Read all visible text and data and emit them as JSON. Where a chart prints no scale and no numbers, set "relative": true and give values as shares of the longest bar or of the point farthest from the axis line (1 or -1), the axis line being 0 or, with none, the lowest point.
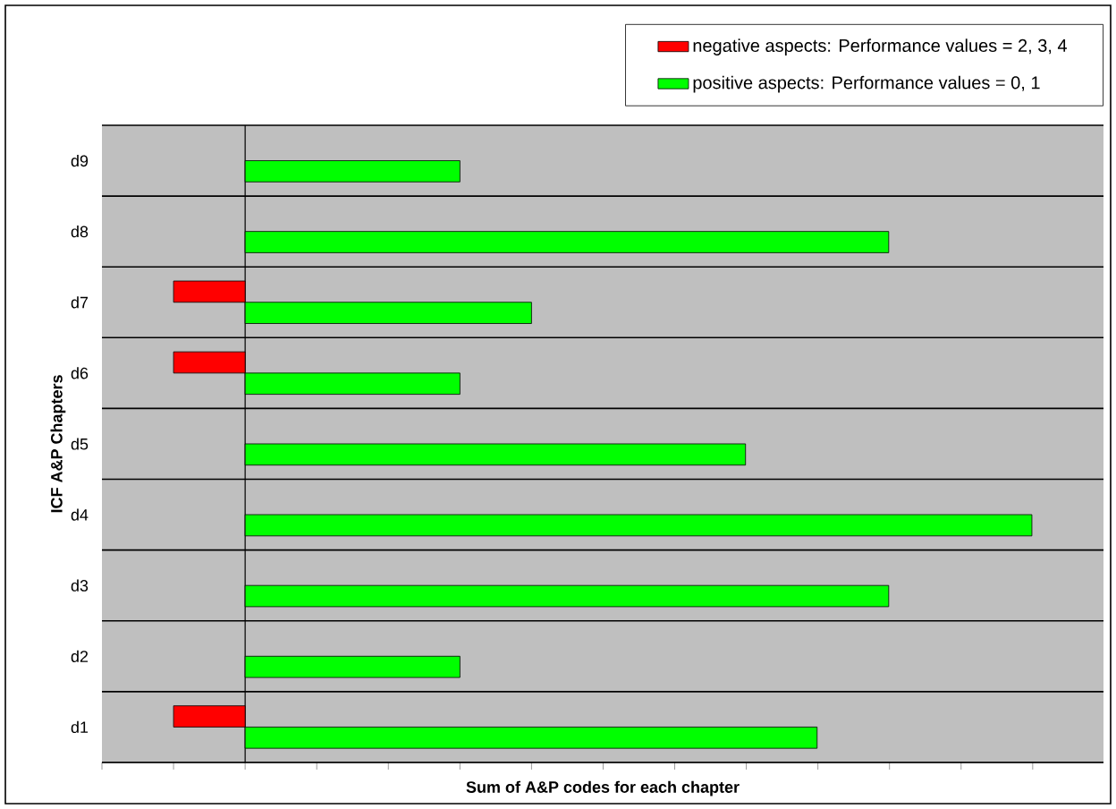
{
  "chart_data": {
    "type": "bar",
    "orientation": "horizontal",
    "relative": true,
    "xlabel": "Sum of A&P codes for each chapter",
    "ylabel": "ICF A&P Chapters",
    "categories": [
      "d9",
      "d8",
      "d7",
      "d6",
      "d5",
      "d4",
      "d3",
      "d2",
      "d1"
    ],
    "series": [
      {
        "name": "negative aspects: Performance values = 2, 3, 4",
        "color": "#ff0000",
        "values": [
          null,
          null,
          -0.091,
          -0.091,
          null,
          null,
          null,
          null,
          -0.091
        ]
      },
      {
        "name": "positive aspects: Performance values = 0, 1",
        "color": "#00ff00",
        "values": [
          0.273,
          0.818,
          0.364,
          0.273,
          0.636,
          1,
          0.818,
          0.273,
          0.727
        ]
      }
    ],
    "grid": "y",
    "legend": "top right"
  }
}
